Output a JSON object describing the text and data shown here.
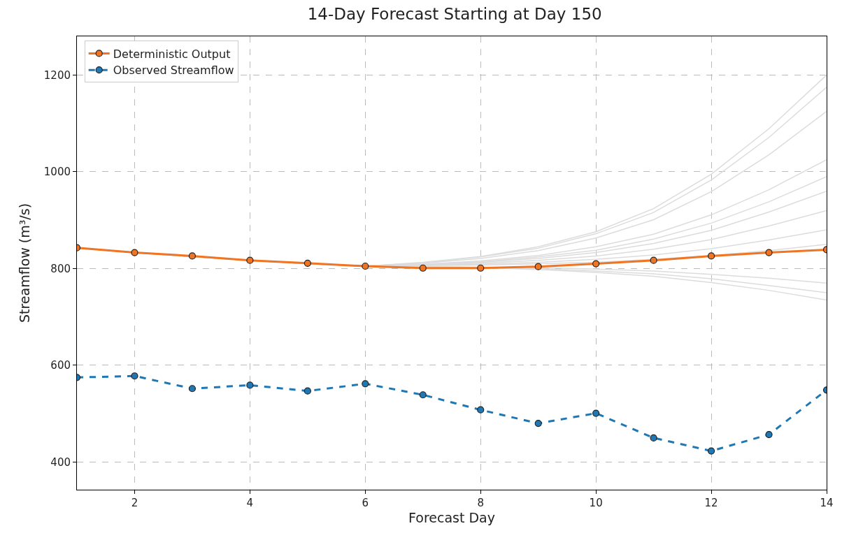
{
  "chart_data": {
    "type": "line",
    "title": "14-Day Forecast Starting at Day 150",
    "xlabel": "Forecast Day",
    "ylabel": "Streamflow (m³/s)",
    "x": [
      1,
      2,
      3,
      4,
      5,
      6,
      7,
      8,
      9,
      10,
      11,
      12,
      13,
      14
    ],
    "xlim": [
      1,
      14
    ],
    "xticks": [
      2,
      4,
      6,
      8,
      10,
      12,
      14
    ],
    "ylim": [
      343,
      1280
    ],
    "yticks": [
      400,
      600,
      800,
      1000,
      1200
    ],
    "grid": true,
    "legend": "top left",
    "series": [
      {
        "color": "#dcdcdc",
        "line_style": "solid",
        "marker": "none",
        "values": [
          843,
          833,
          825,
          817,
          810,
          805,
          813,
          825,
          845,
          876,
          924,
          995,
          1089,
          1200
        ]
      },
      {
        "color": "#dcdcdc",
        "line_style": "solid",
        "marker": "none",
        "values": [
          843,
          833,
          825,
          817,
          810,
          805,
          812,
          824,
          842,
          872,
          916,
          983,
          1071,
          1175
        ]
      },
      {
        "color": "#dcdcdc",
        "line_style": "solid",
        "marker": "none",
        "values": [
          843,
          833,
          825,
          817,
          810,
          805,
          811,
          821,
          837,
          863,
          901,
          959,
          1035,
          1125
        ]
      },
      {
        "color": "#dcdcdc",
        "line_style": "solid",
        "marker": "none",
        "values": [
          843,
          833,
          825,
          817,
          810,
          805,
          809,
          816,
          827,
          845,
          871,
          911,
          963,
          1025
        ]
      },
      {
        "color": "#dcdcdc",
        "line_style": "solid",
        "marker": "none",
        "values": [
          843,
          833,
          825,
          817,
          810,
          805,
          809,
          814,
          824,
          838,
          861,
          894,
          938,
          990
        ]
      },
      {
        "color": "#dcdcdc",
        "line_style": "solid",
        "marker": "none",
        "values": [
          843,
          833,
          825,
          817,
          810,
          805,
          808,
          813,
          821,
          833,
          852,
          879,
          917,
          960
        ]
      },
      {
        "color": "#dcdcdc",
        "line_style": "solid",
        "marker": "none",
        "values": [
          843,
          833,
          825,
          817,
          810,
          805,
          807,
          811,
          817,
          826,
          840,
          860,
          888,
          920
        ]
      },
      {
        "color": "#dcdcdc",
        "line_style": "solid",
        "marker": "none",
        "values": [
          843,
          833,
          825,
          817,
          810,
          805,
          807,
          809,
          813,
          819,
          828,
          841,
          859,
          880
        ]
      },
      {
        "color": "#dcdcdc",
        "line_style": "solid",
        "marker": "none",
        "values": [
          843,
          833,
          825,
          817,
          810,
          805,
          806,
          807,
          810,
          813,
          819,
          827,
          837,
          850
        ]
      },
      {
        "color": "#dcdcdc",
        "line_style": "solid",
        "marker": "none",
        "values": [
          843,
          833,
          825,
          817,
          810,
          805,
          804,
          803,
          802,
          799,
          795,
          788,
          780,
          770
        ]
      },
      {
        "color": "#dcdcdc",
        "line_style": "solid",
        "marker": "none",
        "values": [
          843,
          833,
          825,
          817,
          810,
          805,
          804,
          802,
          800,
          795,
          789,
          779,
          765,
          750
        ]
      },
      {
        "color": "#dcdcdc",
        "line_style": "solid",
        "marker": "none",
        "values": [
          843,
          833,
          825,
          817,
          810,
          805,
          804,
          802,
          798,
          792,
          784,
          771,
          755,
          735
        ]
      },
      {
        "name": "Deterministic Output",
        "color": "#f07522",
        "line_style": "solid",
        "marker": "circle",
        "values": [
          843,
          833,
          826,
          817,
          811,
          805,
          801,
          801,
          804,
          810,
          817,
          826,
          833,
          839
        ]
      },
      {
        "name": "Observed Streamflow",
        "color": "#1f77b4",
        "line_style": "dashed",
        "marker": "circle",
        "values": [
          575,
          578,
          552,
          559,
          547,
          562,
          539,
          508,
          480,
          501,
          450,
          423,
          457,
          549
        ]
      }
    ]
  }
}
